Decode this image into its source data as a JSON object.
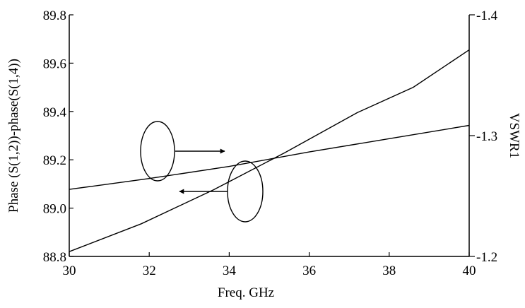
{
  "chart_data": {
    "type": "line",
    "xlabel": "Freq. GHz",
    "ylabel_left": "Phase (S(1,2))-phase(S(1,4))",
    "ylabel_right": "VSWR1",
    "xlim": [
      30,
      40
    ],
    "ylim_left": [
      88.8,
      89.8
    ],
    "ylim_right": [
      -1.2,
      -1.4
    ],
    "x_ticks": [
      "30",
      "32",
      "34",
      "36",
      "38",
      "40"
    ],
    "y_left_ticks": [
      "88.8",
      "89.0",
      "89.2",
      "89.4",
      "89.6",
      "89.8"
    ],
    "y_right_ticks": [
      "-1.2",
      "-1.3",
      "-1.4"
    ],
    "series": [
      {
        "axis": "left",
        "x": [
          30,
          31.8,
          33.6,
          35.4,
          37.2,
          38.6,
          40
        ],
        "values": [
          88.82,
          88.935,
          89.075,
          89.23,
          89.395,
          89.5,
          89.655
        ]
      },
      {
        "axis": "right",
        "x": [
          30,
          32,
          34,
          36,
          38,
          40
        ],
        "values": [
          -1.2555,
          -1.2645,
          -1.2745,
          -1.2865,
          -1.2975,
          -1.3085
        ]
      }
    ],
    "grid": false,
    "colors": {
      "line": "#000000",
      "axis": "#000000"
    }
  }
}
